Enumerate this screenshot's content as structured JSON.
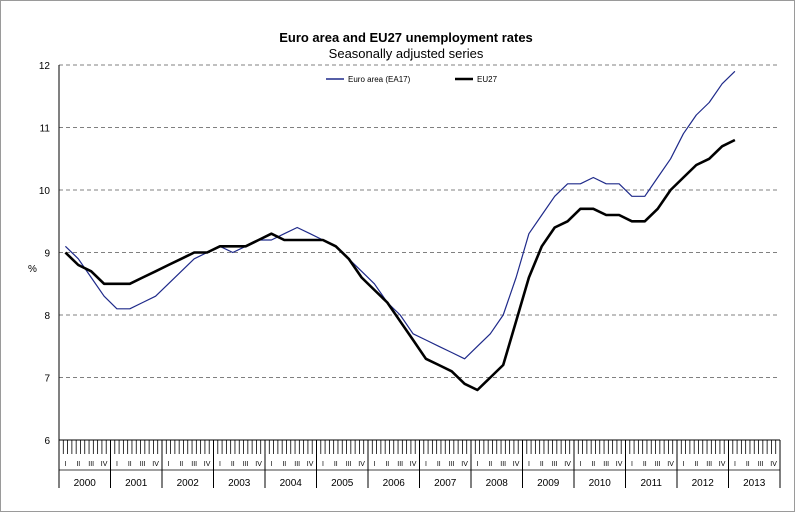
{
  "chart_data": {
    "type": "line",
    "title": "Euro area and EU27 unemployment rates",
    "subtitle": "Seasonally adjusted series",
    "ylabel": "%",
    "ylim": [
      6,
      12
    ],
    "yticks": [
      "6",
      "7",
      "8",
      "9",
      "10",
      "11",
      "12"
    ],
    "grid": "horizontal dashed",
    "legend_position": "top-center",
    "years": [
      "2000",
      "2001",
      "2002",
      "2003",
      "2004",
      "2005",
      "2006",
      "2007",
      "2008",
      "2009",
      "2010",
      "2011",
      "2012",
      "2013"
    ],
    "quarters": [
      "I",
      "II",
      "III",
      "IV"
    ],
    "x_unit": "quarter, Q1 2000 to Q1 2013",
    "x": [
      "2000Q1",
      "2000Q2",
      "2000Q3",
      "2000Q4",
      "2001Q1",
      "2001Q2",
      "2001Q3",
      "2001Q4",
      "2002Q1",
      "2002Q2",
      "2002Q3",
      "2002Q4",
      "2003Q1",
      "2003Q2",
      "2003Q3",
      "2003Q4",
      "2004Q1",
      "2004Q2",
      "2004Q3",
      "2004Q4",
      "2005Q1",
      "2005Q2",
      "2005Q3",
      "2005Q4",
      "2006Q1",
      "2006Q2",
      "2006Q3",
      "2006Q4",
      "2007Q1",
      "2007Q2",
      "2007Q3",
      "2007Q4",
      "2008Q1",
      "2008Q2",
      "2008Q3",
      "2008Q4",
      "2009Q1",
      "2009Q2",
      "2009Q3",
      "2009Q4",
      "2010Q1",
      "2010Q2",
      "2010Q3",
      "2010Q4",
      "2011Q1",
      "2011Q2",
      "2011Q3",
      "2011Q4",
      "2012Q1",
      "2012Q2",
      "2012Q3",
      "2012Q4",
      "2013Q1"
    ],
    "series": [
      {
        "name": "Euro area (EA17)",
        "color": "#1f2a8a",
        "values": [
          9.1,
          8.9,
          8.6,
          8.3,
          8.1,
          8.1,
          8.2,
          8.3,
          8.5,
          8.7,
          8.9,
          9.0,
          9.1,
          9.0,
          9.1,
          9.2,
          9.2,
          9.3,
          9.4,
          9.3,
          9.2,
          9.1,
          8.9,
          8.7,
          8.5,
          8.2,
          8.0,
          7.7,
          7.6,
          7.5,
          7.4,
          7.3,
          7.5,
          7.7,
          8.0,
          8.6,
          9.3,
          9.6,
          9.9,
          10.1,
          10.1,
          10.2,
          10.1,
          10.1,
          9.9,
          9.9,
          10.2,
          10.5,
          10.9,
          11.2,
          11.4,
          11.7,
          11.9
        ]
      },
      {
        "name": "EU27",
        "color": "#000000",
        "values": [
          9.0,
          8.8,
          8.7,
          8.5,
          8.5,
          8.5,
          8.6,
          8.7,
          8.8,
          8.9,
          9.0,
          9.0,
          9.1,
          9.1,
          9.1,
          9.2,
          9.3,
          9.2,
          9.2,
          9.2,
          9.2,
          9.1,
          8.9,
          8.6,
          8.4,
          8.2,
          7.9,
          7.6,
          7.3,
          7.2,
          7.1,
          6.9,
          6.8,
          7.0,
          7.2,
          7.9,
          8.6,
          9.1,
          9.4,
          9.5,
          9.7,
          9.7,
          9.6,
          9.6,
          9.5,
          9.5,
          9.7,
          10.0,
          10.2,
          10.4,
          10.5,
          10.7,
          10.8
        ]
      }
    ]
  }
}
